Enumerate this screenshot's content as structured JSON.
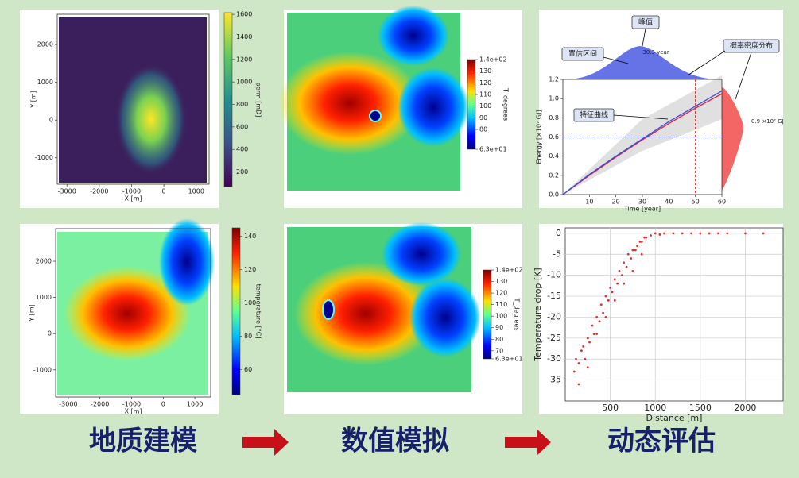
{
  "panels": {
    "perm_map": {
      "xlabel": "X [m]",
      "ylabel": "Y [m]",
      "xlim": [
        -3300,
        1400
      ],
      "ylim": [
        -1700,
        2800
      ],
      "xticks": [
        -3000,
        -2000,
        -1000,
        0,
        1000
      ],
      "yticks": [
        -1000,
        0,
        1000,
        2000
      ],
      "colorbar": {
        "label": "perm [mD]",
        "clim": [
          70,
          1615
        ],
        "ticks": [
          200,
          400,
          600,
          800,
          1000,
          1200,
          1400,
          1600
        ]
      }
    },
    "sim_top": {
      "colorbar": {
        "label": "T_degrees",
        "clim": [
          63,
          140
        ],
        "ticks": [
          {
            "value": 140,
            "label": "1.4e+02"
          },
          130,
          120,
          110,
          100,
          90,
          80,
          {
            "value": 63,
            "label": "6.3e+01"
          }
        ]
      }
    },
    "energy": {
      "type": "line",
      "xlabel": "Time [year]",
      "ylabel": "Energy [×10⁷ GJ]",
      "xlim": [
        0,
        60
      ],
      "ylim": [
        0,
        1.2
      ],
      "xticks": [
        10,
        20,
        30,
        40,
        50,
        60
      ],
      "yticks": [
        {
          "value": 0,
          "label": "0.0"
        },
        {
          "value": 0.2,
          "label": "0.2"
        },
        {
          "value": 0.4,
          "label": "0.4"
        },
        {
          "value": 0.6,
          "label": "0.6"
        },
        {
          "value": 0.8,
          "label": "0.8"
        },
        {
          "value": 1,
          "label": "1.0"
        },
        {
          "value": 1.2,
          "label": "1.2"
        }
      ],
      "x": [
        0,
        10,
        20,
        30,
        40,
        50,
        60
      ],
      "series": [
        {
          "color": "#e0203a",
          "values": [
            0,
            0.2,
            0.39,
            0.57,
            0.74,
            0.9,
            1.05
          ]
        },
        {
          "color": "#3050e0",
          "values": [
            0,
            0.21,
            0.4,
            0.58,
            0.76,
            0.92,
            1.08
          ]
        }
      ],
      "hline": 0.6,
      "vline": 50,
      "annotations": {
        "peak": "峰值",
        "peak_year": "30.3 year",
        "interval": "置信区间",
        "pdf": "概率密度分布",
        "curve": "特征曲线",
        "right_value": "0.9 ×10⁷ GJ"
      }
    },
    "temp_map": {
      "xlabel": "X [m]",
      "ylabel": "Y [m]",
      "xlim": [
        -3400,
        1500
      ],
      "ylim": [
        -1750,
        2900
      ],
      "xticks": [
        -3000,
        -2000,
        -1000,
        0,
        1000
      ],
      "yticks": [
        -1000,
        0,
        1000,
        2000
      ],
      "colorbar": {
        "label": "temperature [°C]",
        "clim": [
          45,
          145
        ],
        "ticks": [
          60,
          80,
          100,
          120,
          140
        ]
      }
    },
    "sim_bottom": {
      "colorbar": {
        "label": "T_degrees",
        "clim": [
          63,
          140
        ],
        "ticks": [
          {
            "value": 140,
            "label": "1.4e+02"
          },
          130,
          120,
          110,
          100,
          90,
          80,
          70,
          {
            "value": 63,
            "label": "6.3e+01"
          }
        ]
      }
    },
    "temp_drop": {
      "type": "scatter",
      "xlabel": "Distance [m]",
      "ylabel": "Temperature drop [K]",
      "xlim": [
        0,
        2420
      ],
      "ylim": [
        -40,
        1.3
      ],
      "xticks": [
        500,
        1000,
        1500,
        2000
      ],
      "yticks": [
        0,
        -5,
        -10,
        -15,
        -20,
        -25,
        -30,
        -35
      ],
      "grid": true,
      "color": "#e03030",
      "x": [
        100,
        120,
        150,
        180,
        200,
        220,
        250,
        270,
        300,
        320,
        350,
        380,
        400,
        420,
        450,
        480,
        500,
        520,
        550,
        580,
        600,
        630,
        650,
        680,
        700,
        730,
        750,
        780,
        800,
        830,
        850,
        880,
        900,
        950,
        1000,
        1050,
        1100,
        1200,
        1300,
        1400,
        1500,
        1600,
        1700,
        1800,
        2000,
        2200,
        150,
        250,
        350,
        450,
        550,
        650,
        750,
        850
      ],
      "values": [
        -33,
        -30,
        -31,
        -28,
        -27,
        -30,
        -25,
        -26,
        -22,
        -24,
        -20,
        -21,
        -17,
        -19,
        -15,
        -16,
        -13,
        -14,
        -11,
        -12,
        -9,
        -10,
        -7,
        -8,
        -5,
        -6,
        -4,
        -4,
        -3,
        -2,
        -2,
        -1,
        -1,
        -0.5,
        0,
        -0.3,
        0,
        0,
        0,
        0,
        0,
        0,
        0,
        0,
        0,
        0,
        -36,
        -32,
        -24,
        -20,
        -16,
        -12,
        -9,
        -5
      ]
    }
  },
  "steps": [
    "地质建模",
    "数值模拟",
    "动态评估"
  ]
}
